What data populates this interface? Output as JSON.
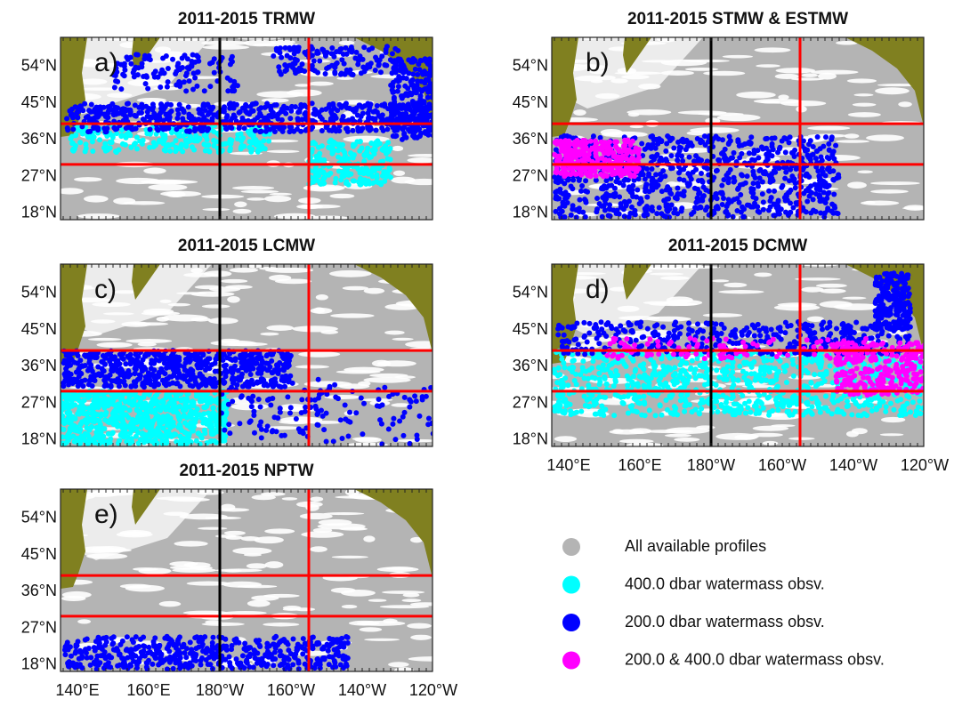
{
  "panels": [
    {
      "title": "2011-2015 TRMW",
      "label": "a)"
    },
    {
      "title": "2011-2015 STMW & ESTMW",
      "label": "b)"
    },
    {
      "title": "2011-2015 LCMW",
      "label": "c)"
    },
    {
      "title": "2011-2015 DCMW",
      "label": "d)"
    },
    {
      "title": "2011-2015 NPTW",
      "label": "e)"
    }
  ],
  "lat_ticks": [
    "54°N",
    "45°N",
    "36°N",
    "27°N",
    "18°N"
  ],
  "lon_ticks": [
    "140°E",
    "160°E",
    "180°W",
    "160°W",
    "140°W",
    "120°W"
  ],
  "legend": [
    {
      "label": "All available profiles",
      "color": "#b4b4b4"
    },
    {
      "label": "400.0 dbar watermass obsv.",
      "color": "#00ffff"
    },
    {
      "label": "200.0 dbar watermass obsv.",
      "color": "#0000ff"
    },
    {
      "label": "200.0 & 400.0 dbar watermass obsv.",
      "color": "#ff00ff"
    }
  ]
}
